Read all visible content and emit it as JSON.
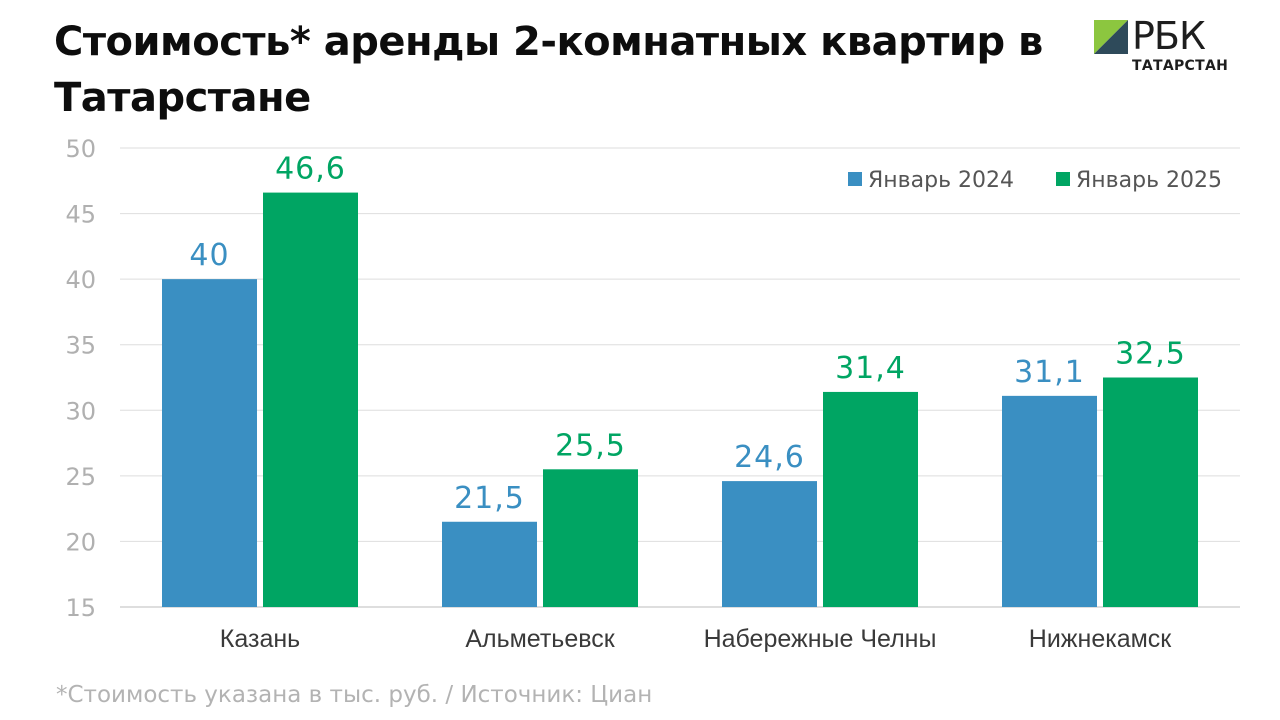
{
  "header": {
    "title": "Стоимость* аренды 2-комнатных квартир в Татарстане"
  },
  "logo": {
    "brand": "РБК",
    "region": "ТАТАРСТАН"
  },
  "footnote": "*Стоимость указана в тыс. руб.  / Источник: Циан",
  "chart_data": {
    "type": "bar",
    "title": "Стоимость* аренды 2-комнатных квартир в Татарстане",
    "xlabel": "",
    "ylabel": "",
    "categories": [
      "Казань",
      "Альметьевск",
      "Набережные Челны",
      "Нижнекамск"
    ],
    "series": [
      {
        "name": "Январь 2024",
        "values": [
          40,
          21.5,
          24.6,
          31.1
        ],
        "labels": [
          "40",
          "21,5",
          "24,6",
          "31,1"
        ],
        "color": "#3a8fc2"
      },
      {
        "name": "Январь 2025",
        "values": [
          46.6,
          25.5,
          31.4,
          32.5
        ],
        "labels": [
          "46,6",
          "25,5",
          "31,4",
          "32,5"
        ],
        "color": "#00a563"
      }
    ],
    "ylim": [
      15,
      50
    ],
    "yticks": [
      15,
      20,
      25,
      30,
      35,
      40,
      45,
      50
    ],
    "grid": true,
    "legend_position": "top-right"
  }
}
